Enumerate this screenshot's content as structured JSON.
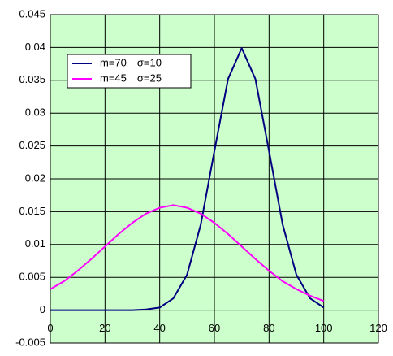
{
  "chart_data": {
    "type": "line",
    "x": [
      0,
      5,
      10,
      15,
      20,
      25,
      30,
      35,
      40,
      45,
      50,
      55,
      60,
      65,
      70,
      75,
      80,
      85,
      90,
      95,
      100
    ],
    "series": [
      {
        "name": "m=70　σ=10",
        "color": "#000080",
        "values": [
          0,
          0,
          0,
          0,
          0,
          0,
          0,
          0.0001,
          0.0004,
          0.0018,
          0.0054,
          0.013,
          0.0242,
          0.0352,
          0.0399,
          0.0352,
          0.0242,
          0.013,
          0.0054,
          0.0018,
          0.0004
        ]
      },
      {
        "name": "m=45　σ=25",
        "color": "#ff00ff",
        "values": [
          0.0032,
          0.0044,
          0.006,
          0.0078,
          0.0097,
          0.0116,
          0.0133,
          0.0147,
          0.0156,
          0.016,
          0.0156,
          0.0147,
          0.0133,
          0.0116,
          0.0097,
          0.0078,
          0.006,
          0.0044,
          0.0032,
          0.0022,
          0.0014
        ]
      }
    ],
    "xlim": [
      0,
      120
    ],
    "xticks": [
      0,
      20,
      40,
      60,
      80,
      100,
      120
    ],
    "ylim": [
      -0.005,
      0.045
    ],
    "yticks": [
      -0.005,
      0,
      0.005,
      0.01,
      0.015,
      0.02,
      0.025,
      0.03,
      0.035,
      0.04,
      0.045
    ],
    "grid": true,
    "plot_background": "#ccffcc"
  }
}
